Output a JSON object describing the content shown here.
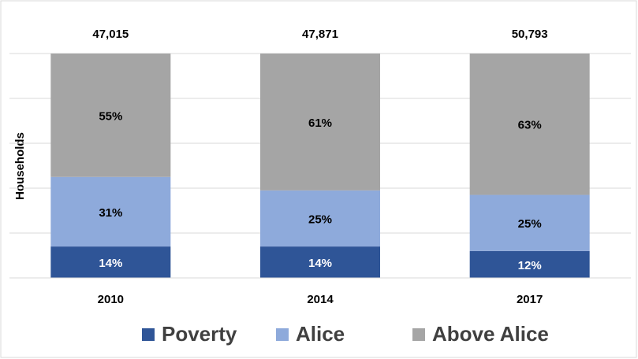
{
  "chart_data": {
    "type": "stacked_bar",
    "y_label": "Households",
    "categories": [
      "2010",
      "2014",
      "2017"
    ],
    "totals": [
      {
        "value": 47015,
        "label": "47,015"
      },
      {
        "value": 47871,
        "label": "47,871"
      },
      {
        "value": 50793,
        "label": "50,793"
      }
    ],
    "series": [
      {
        "name": "Poverty",
        "color": "#2f5597",
        "values": [
          14,
          14,
          12
        ],
        "value_labels": [
          "14%",
          "14%",
          "12%"
        ]
      },
      {
        "name": "Alice",
        "color": "#8eaadb",
        "values": [
          31,
          25,
          25
        ],
        "value_labels": [
          "31%",
          "25%",
          "25%"
        ]
      },
      {
        "name": "Above Alice",
        "color": "#a5a5a5",
        "values": [
          55,
          61,
          63
        ],
        "value_labels": [
          "55%",
          "61%",
          "63%"
        ]
      }
    ],
    "ylim": [
      0,
      100
    ],
    "yticks": [
      0,
      20,
      40,
      60,
      80,
      100
    ],
    "grid": true,
    "legend": "bottom"
  }
}
